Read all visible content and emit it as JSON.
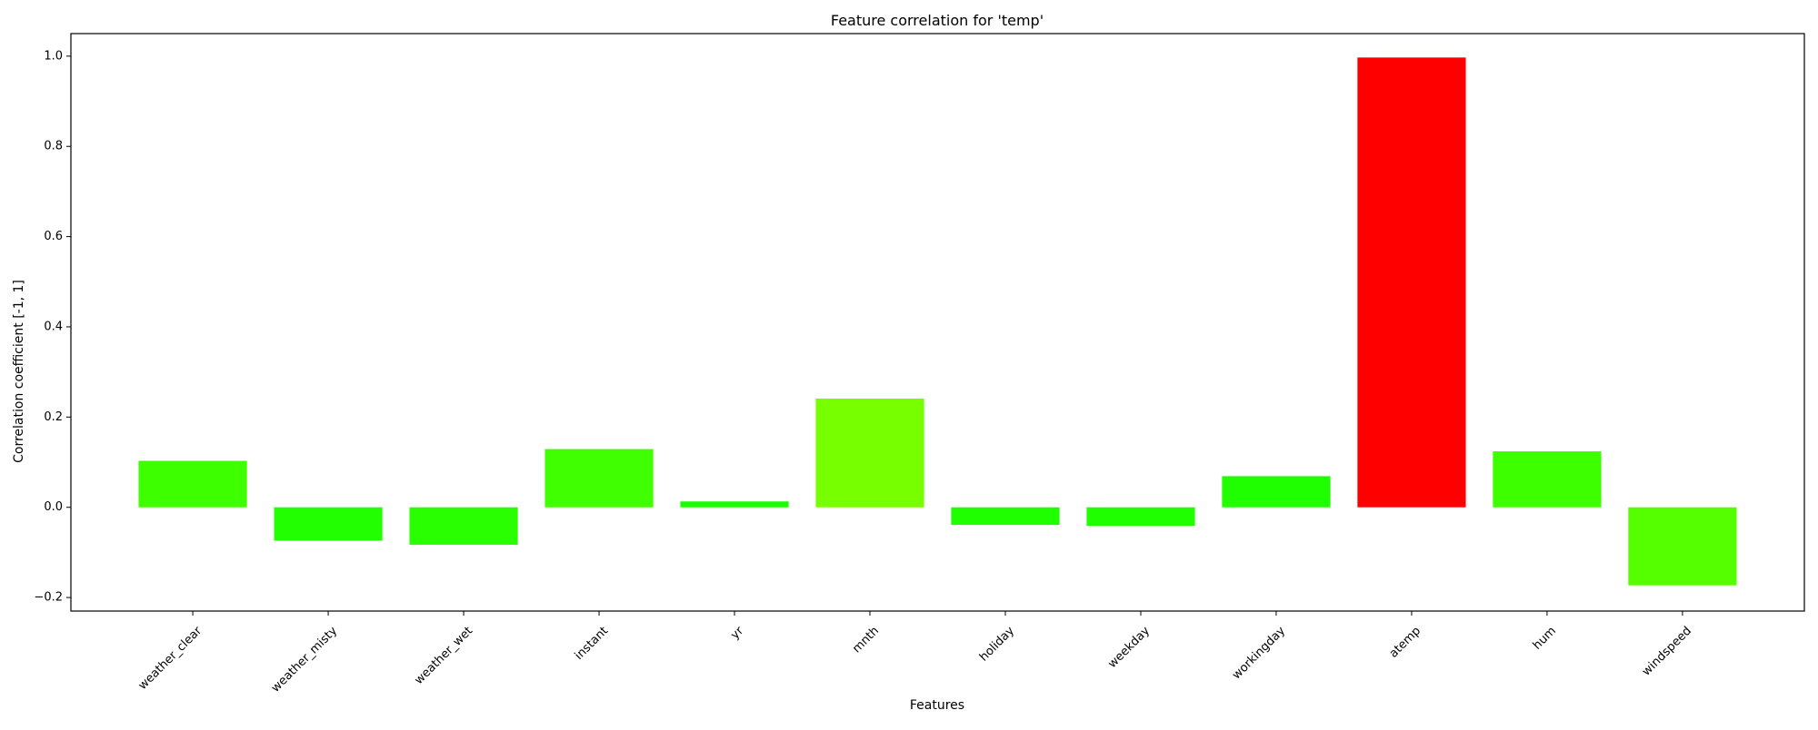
{
  "chart_data": {
    "type": "bar",
    "title": "Feature correlation for 'temp'",
    "xlabel": "Features",
    "ylabel": "Correlation coefficient [-1, 1]",
    "ylim": [
      -0.23,
      1.05
    ],
    "yticks": [
      -0.2,
      0.0,
      0.2,
      0.4,
      0.6,
      0.8,
      1.0
    ],
    "ytick_labels": [
      "−0.2",
      "0.0",
      "0.2",
      "0.4",
      "0.6",
      "0.8",
      "1.0"
    ],
    "grid": false,
    "categories": [
      "weather_clear",
      "weather_misty",
      "weather_wet",
      "instant",
      "yr",
      "mnth",
      "holiday",
      "weekday",
      "workingday",
      "atemp",
      "hum",
      "windspeed"
    ],
    "values": [
      0.103,
      -0.074,
      -0.083,
      0.129,
      0.013,
      0.241,
      -0.039,
      -0.041,
      0.069,
      0.997,
      0.124,
      -0.173
    ],
    "colors": [
      "#3dff00",
      "#22ff00",
      "#2aff00",
      "#3fff00",
      "#1aff00",
      "#77ff00",
      "#1fff00",
      "#1fff00",
      "#20ff00",
      "#ff0000",
      "#3dff00",
      "#55ff00"
    ]
  }
}
